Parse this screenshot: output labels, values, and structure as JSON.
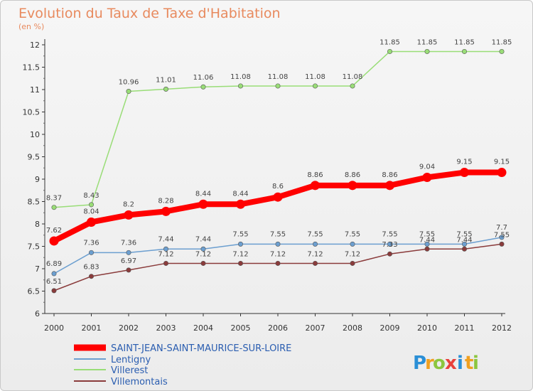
{
  "chart_data": {
    "type": "line",
    "title": "Evolution du Taux de Taxe d'Habitation",
    "subtitle": "(en %)",
    "x": [
      "2000",
      "2001",
      "2002",
      "2003",
      "2004",
      "2005",
      "2006",
      "2007",
      "2008",
      "2009",
      "2010",
      "2011",
      "2012"
    ],
    "y_ticks": [
      "6",
      "6.5",
      "7",
      "7.5",
      "8",
      "8.5",
      "9",
      "9.5",
      "10",
      "10.5",
      "11",
      "11.5",
      "12"
    ],
    "ylim": [
      6,
      12
    ],
    "grid": false,
    "legend_position": "bottom-left",
    "series": [
      {
        "name": "SAINT-JEAN-SAINT-MAURICE-SUR-LOIRE",
        "color": "#ff0000",
        "values": [
          7.62,
          8.04,
          8.2,
          8.28,
          8.44,
          8.44,
          8.6,
          8.86,
          8.86,
          8.86,
          9.04,
          9.15,
          9.15
        ],
        "labels": [
          "7.62",
          "8.04",
          "8.2",
          "8.28",
          "8.44",
          "8.44",
          "8.6",
          "8.86",
          "8.86",
          "8.86",
          "9.04",
          "9.15",
          "9.15"
        ]
      },
      {
        "name": "Lentigny",
        "color": "#6c9fd0",
        "values": [
          6.89,
          7.36,
          7.36,
          7.44,
          7.44,
          7.55,
          7.55,
          7.55,
          7.55,
          7.55,
          7.55,
          7.55,
          7.7
        ],
        "labels": [
          "6.89",
          "7.36",
          "7.36",
          "7.44",
          "7.44",
          "7.55",
          "7.55",
          "7.55",
          "7.55",
          "7.55",
          "7.55",
          "7.55",
          "7.7"
        ]
      },
      {
        "name": "Villerest",
        "color": "#99dd77",
        "values": [
          8.37,
          8.43,
          10.96,
          11.01,
          11.06,
          11.08,
          11.08,
          11.08,
          11.08,
          11.85,
          11.85,
          11.85,
          11.85
        ],
        "labels": [
          "8.37",
          "8.43",
          "10.96",
          "11.01",
          "11.06",
          "11.08",
          "11.08",
          "11.08",
          "11.08",
          "11.85",
          "11.85",
          "11.85",
          "11.85"
        ]
      },
      {
        "name": "Villemontais",
        "color": "#8a3b3b",
        "values": [
          6.51,
          6.83,
          6.97,
          7.12,
          7.12,
          7.12,
          7.12,
          7.12,
          7.12,
          7.33,
          7.44,
          7.44,
          7.55
        ],
        "labels": [
          "6.51",
          "6.83",
          "6.97",
          "7.12",
          "7.12",
          "7.12",
          "7.12",
          "7.12",
          "7.12",
          "7.33",
          "7.44",
          "7.44",
          "7.55"
        ]
      }
    ]
  },
  "logo": {
    "letters": [
      "P",
      "r",
      "o",
      "x",
      "i",
      "t",
      "i"
    ],
    "colors": [
      "#2a8fd6",
      "#f0a020",
      "#8cc63f",
      "#e8413c",
      "#2a8fd6",
      "#f0a020",
      "#8cc63f"
    ]
  }
}
